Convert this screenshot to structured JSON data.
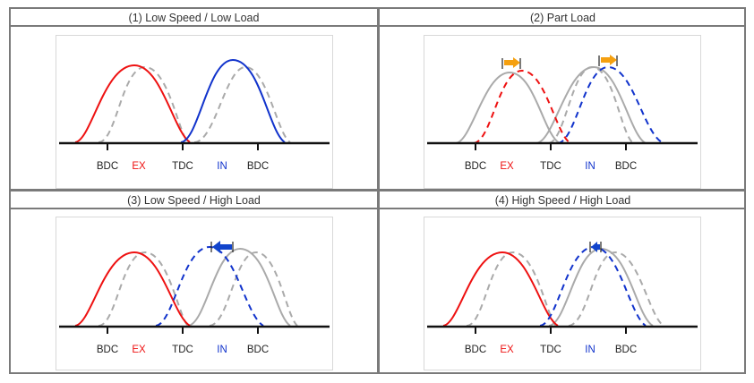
{
  "colors": {
    "exhaust": "#ee1111",
    "intake": "#1133cc",
    "ghost": "#aaaaaa",
    "arrow_retard": "#f5a010",
    "arrow_advance": "#1144cc",
    "label": "#222222"
  },
  "panels": [
    {
      "title": "(1) Low Speed / Low Load",
      "labels": {
        "bdc1": "BDC",
        "ex": "EX",
        "tdc": "TDC",
        "in": "IN",
        "bdc2": "BDC"
      },
      "exhaust": "solid-red",
      "intake": "solid-blue",
      "arrows": []
    },
    {
      "title": "(2) Part Load",
      "labels": {
        "bdc1": "BDC",
        "ex": "EX",
        "tdc": "TDC",
        "in": "IN",
        "bdc2": "BDC"
      },
      "exhaust": "dashed-red shifted later",
      "intake": "dashed-blue shifted later",
      "arrows": [
        "retard-orange",
        "retard-orange"
      ]
    },
    {
      "title": "(3) Low Speed / High Load",
      "labels": {
        "bdc1": "BDC",
        "ex": "EX",
        "tdc": "TDC",
        "in": "IN",
        "bdc2": "BDC"
      },
      "exhaust": "solid-red",
      "intake": "dashed-blue shifted earlier",
      "arrows": [
        "advance-blue"
      ]
    },
    {
      "title": "(4) High Speed / High Load",
      "labels": {
        "bdc1": "BDC",
        "ex": "EX",
        "tdc": "TDC",
        "in": "IN",
        "bdc2": "BDC"
      },
      "exhaust": "solid-red",
      "intake": "dashed-blue shifted slightly earlier",
      "arrows": [
        "advance-blue-short"
      ]
    }
  ]
}
